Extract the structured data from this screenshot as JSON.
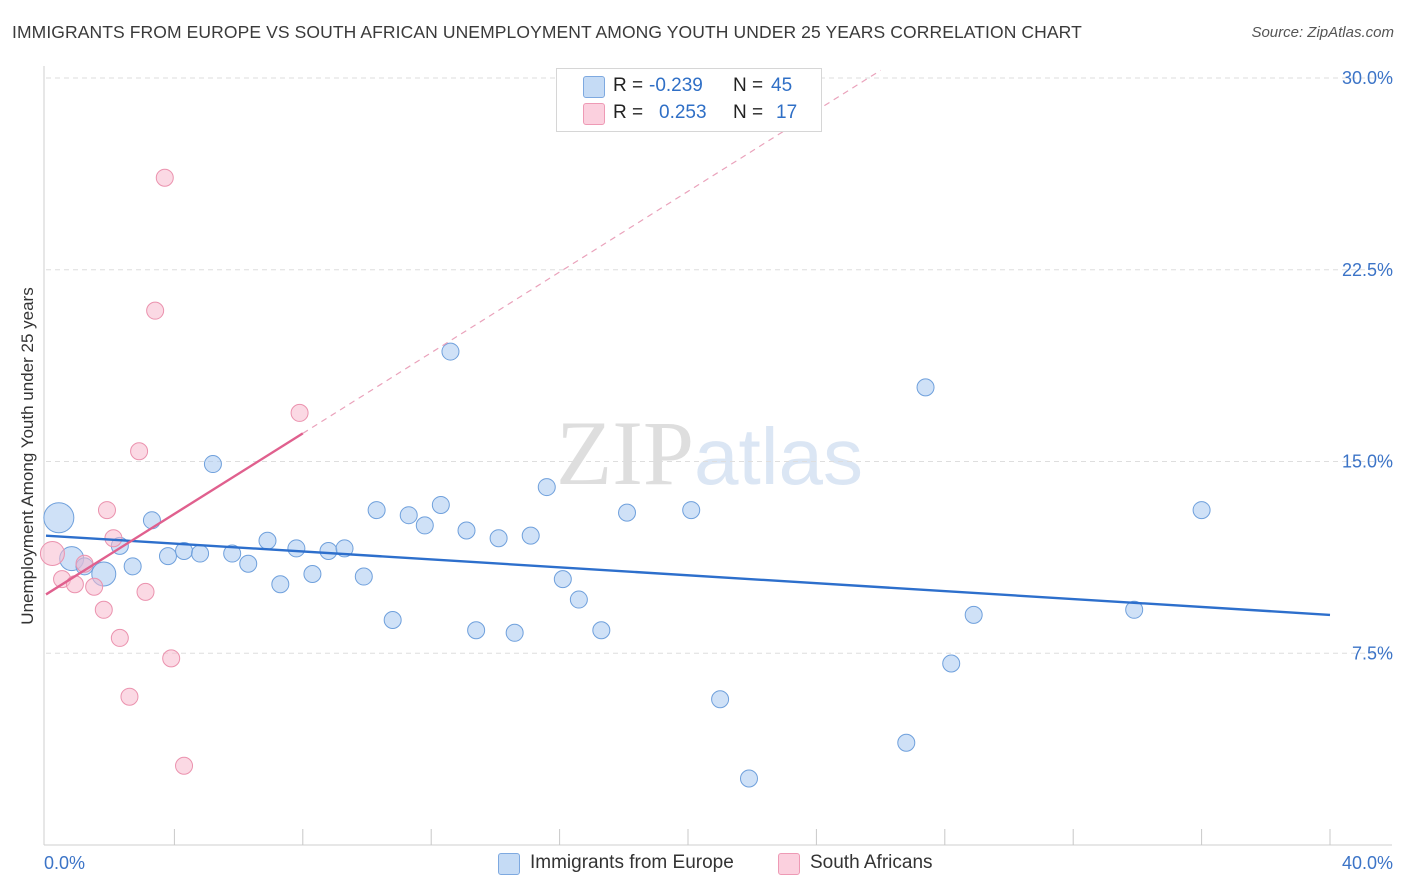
{
  "title": "IMMIGRANTS FROM EUROPE VS SOUTH AFRICAN UNEMPLOYMENT AMONG YOUTH UNDER 25 YEARS CORRELATION CHART",
  "source": "Source: ZipAtlas.com",
  "watermark": {
    "zip": "ZIP",
    "atlas": "atlas"
  },
  "legend": {
    "rows": [
      {
        "r_label": "R =",
        "r_value": "-0.239",
        "n_label": "N =",
        "n_value": "45",
        "color": "#a8c8f0"
      },
      {
        "r_label": "R =",
        "r_value": "0.253",
        "n_label": "N =",
        "n_value": "17",
        "color": "#f7b9cd"
      }
    ]
  },
  "bottom_legend": {
    "series1": "Immigrants from Europe",
    "series2": "South Africans"
  },
  "chart_data": {
    "type": "scatter",
    "title": "IMMIGRANTS FROM EUROPE VS SOUTH AFRICAN UNEMPLOYMENT AMONG YOUTH UNDER 25 YEARS CORRELATION CHART",
    "xlabel": "",
    "ylabel": "Unemployment Among Youth under 25 years",
    "xlim": [
      0,
      40
    ],
    "ylim": [
      0,
      30
    ],
    "x_tick_labels": [
      "0.0%",
      "40.0%"
    ],
    "y_ticks": [
      7.5,
      15.0,
      22.5,
      30.0
    ],
    "y_tick_labels": [
      "7.5%",
      "15.0%",
      "22.5%",
      "30.0%"
    ],
    "grid": true,
    "series": [
      {
        "name": "Immigrants from Europe",
        "color": "#a8c8f0",
        "stroke": "#6fa0dc",
        "trend": {
          "x0": 0,
          "y0": 12.1,
          "x1": 40,
          "y1": 9.0,
          "color": "#2d6fcc"
        },
        "points": [
          {
            "x": 0.4,
            "y": 12.8,
            "s": 3
          },
          {
            "x": 0.8,
            "y": 11.2,
            "s": 2
          },
          {
            "x": 1.2,
            "y": 10.9,
            "s": 1
          },
          {
            "x": 1.8,
            "y": 10.6,
            "s": 2
          },
          {
            "x": 2.3,
            "y": 11.7,
            "s": 1
          },
          {
            "x": 2.7,
            "y": 10.9,
            "s": 1
          },
          {
            "x": 3.3,
            "y": 12.7,
            "s": 1
          },
          {
            "x": 3.8,
            "y": 11.3,
            "s": 1
          },
          {
            "x": 4.3,
            "y": 11.5,
            "s": 1
          },
          {
            "x": 4.8,
            "y": 11.4,
            "s": 1
          },
          {
            "x": 5.2,
            "y": 14.9,
            "s": 1
          },
          {
            "x": 5.8,
            "y": 11.4,
            "s": 1
          },
          {
            "x": 6.3,
            "y": 11.0,
            "s": 1
          },
          {
            "x": 6.9,
            "y": 11.9,
            "s": 1
          },
          {
            "x": 7.3,
            "y": 10.2,
            "s": 1
          },
          {
            "x": 7.8,
            "y": 11.6,
            "s": 1
          },
          {
            "x": 8.3,
            "y": 10.6,
            "s": 1
          },
          {
            "x": 8.8,
            "y": 11.5,
            "s": 1
          },
          {
            "x": 9.3,
            "y": 11.6,
            "s": 1
          },
          {
            "x": 9.9,
            "y": 10.5,
            "s": 1
          },
          {
            "x": 10.3,
            "y": 13.1,
            "s": 1
          },
          {
            "x": 10.8,
            "y": 8.8,
            "s": 1
          },
          {
            "x": 11.3,
            "y": 12.9,
            "s": 1
          },
          {
            "x": 11.8,
            "y": 12.5,
            "s": 1
          },
          {
            "x": 12.3,
            "y": 13.3,
            "s": 1
          },
          {
            "x": 12.6,
            "y": 19.3,
            "s": 1
          },
          {
            "x": 13.1,
            "y": 12.3,
            "s": 1
          },
          {
            "x": 13.4,
            "y": 8.4,
            "s": 1
          },
          {
            "x": 14.1,
            "y": 12.0,
            "s": 1
          },
          {
            "x": 14.6,
            "y": 8.3,
            "s": 1
          },
          {
            "x": 15.1,
            "y": 12.1,
            "s": 1
          },
          {
            "x": 15.6,
            "y": 14.0,
            "s": 1
          },
          {
            "x": 16.1,
            "y": 10.4,
            "s": 1
          },
          {
            "x": 16.6,
            "y": 9.6,
            "s": 1
          },
          {
            "x": 17.3,
            "y": 8.4,
            "s": 1
          },
          {
            "x": 18.1,
            "y": 13.0,
            "s": 1
          },
          {
            "x": 20.1,
            "y": 13.1,
            "s": 1
          },
          {
            "x": 21.0,
            "y": 5.7,
            "s": 1
          },
          {
            "x": 21.9,
            "y": 2.6,
            "s": 1
          },
          {
            "x": 26.8,
            "y": 4.0,
            "s": 1
          },
          {
            "x": 27.4,
            "y": 17.9,
            "s": 1
          },
          {
            "x": 28.2,
            "y": 7.1,
            "s": 1
          },
          {
            "x": 28.9,
            "y": 9.0,
            "s": 1
          },
          {
            "x": 33.9,
            "y": 9.2,
            "s": 1
          },
          {
            "x": 36.0,
            "y": 13.1,
            "s": 1
          }
        ]
      },
      {
        "name": "South Africans",
        "color": "#f7b9cd",
        "stroke": "#eb92ae",
        "trend": {
          "x0": 0,
          "y0": 9.8,
          "x1": 8,
          "y1": 16.1,
          "color": "#e0608e",
          "dashed_to": {
            "x": 26,
            "y": 30.3
          }
        },
        "points": [
          {
            "x": 0.2,
            "y": 11.4,
            "s": 2
          },
          {
            "x": 0.5,
            "y": 10.4,
            "s": 1
          },
          {
            "x": 0.9,
            "y": 10.2,
            "s": 1
          },
          {
            "x": 1.2,
            "y": 11.0,
            "s": 1
          },
          {
            "x": 1.5,
            "y": 10.1,
            "s": 1
          },
          {
            "x": 1.8,
            "y": 9.2,
            "s": 1
          },
          {
            "x": 1.9,
            "y": 13.1,
            "s": 1
          },
          {
            "x": 2.1,
            "y": 12.0,
            "s": 1
          },
          {
            "x": 2.3,
            "y": 8.1,
            "s": 1
          },
          {
            "x": 2.6,
            "y": 5.8,
            "s": 1
          },
          {
            "x": 2.9,
            "y": 15.4,
            "s": 1
          },
          {
            "x": 3.1,
            "y": 9.9,
            "s": 1
          },
          {
            "x": 3.4,
            "y": 20.9,
            "s": 1
          },
          {
            "x": 3.7,
            "y": 26.1,
            "s": 1
          },
          {
            "x": 3.9,
            "y": 7.3,
            "s": 1
          },
          {
            "x": 4.3,
            "y": 3.1,
            "s": 1
          },
          {
            "x": 7.9,
            "y": 16.9,
            "s": 1
          }
        ]
      }
    ]
  }
}
